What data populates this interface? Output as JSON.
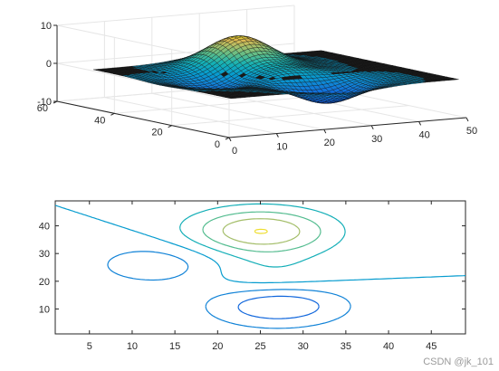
{
  "watermark": "CSDN @jk_101",
  "chart_data": [
    {
      "type": "surface",
      "title": "",
      "xlabel": "",
      "ylabel": "",
      "zlabel": "",
      "xlim": [
        0,
        50
      ],
      "ylim": [
        0,
        60
      ],
      "zlim": [
        -10,
        10
      ],
      "x_ticks": [
        "0",
        "10",
        "20",
        "30",
        "40",
        "50"
      ],
      "y_ticks": [
        "0",
        "20",
        "40",
        "60"
      ],
      "z_ticks": [
        "-10",
        "0",
        "10"
      ],
      "grid": true,
      "colormap": "parula",
      "peaks": [
        {
          "x": 25,
          "y": 38,
          "amplitude": 8.1
        },
        {
          "x": 27,
          "y": 12,
          "amplitude": -6.5
        },
        {
          "x": 13,
          "y": 26,
          "amplitude": -3.3
        },
        {
          "x": 26,
          "y": 20,
          "amplitude": 3.0
        }
      ]
    },
    {
      "type": "contour",
      "title": "",
      "xlabel": "",
      "ylabel": "",
      "xlim": [
        1,
        49
      ],
      "ylim": [
        1,
        49
      ],
      "x_ticks": [
        "5",
        "10",
        "15",
        "20",
        "25",
        "30",
        "35",
        "40",
        "45"
      ],
      "y_ticks": [
        "10",
        "20",
        "30",
        "40"
      ],
      "levels": [
        -6,
        -4,
        -2,
        0,
        2,
        4,
        6,
        8
      ],
      "colormap": "parula"
    }
  ],
  "colors": {
    "axis": "#262626",
    "grid": "#e6e6e6",
    "plane": "#1a1a1a",
    "background": "#ffffff"
  }
}
